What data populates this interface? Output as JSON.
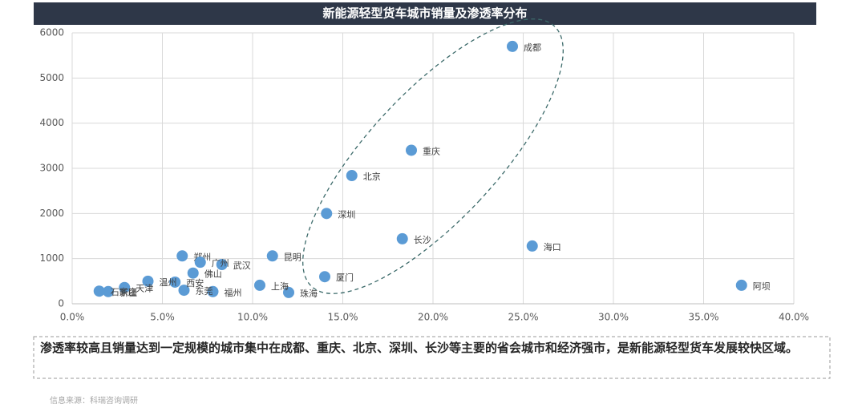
{
  "chart_data": {
    "type": "scatter",
    "title": "新能源轻型货车城市销量及渗透率分布",
    "note": "渗透率较高且销量达到一定规模的城市集中在成都、重庆、北京、深圳、长沙等主要的省会城市和经济强市，是新能源轻型货车发展较快区域。",
    "source": "信息来源：科瑞咨询调研",
    "color": "#5b9bd5",
    "labels": [
      "成都",
      "重庆",
      "北京",
      "深圳",
      "长沙",
      "海口",
      "阿坝",
      "厦门",
      "珠海",
      "上海",
      "昆明",
      "武汉",
      "福州",
      "郑州",
      "广州",
      "佛山",
      "东莞",
      "西安",
      "温州",
      "天津",
      "新疆",
      "石家庄"
    ],
    "x": [
      24.4,
      18.8,
      15.5,
      14.1,
      18.3,
      25.5,
      37.1,
      14.0,
      12.0,
      10.4,
      11.1,
      8.3,
      7.8,
      6.1,
      7.1,
      6.7,
      6.2,
      5.7,
      4.2,
      2.9,
      2.0,
      1.5
    ],
    "values": [
      5700,
      3400,
      2840,
      2000,
      1440,
      1280,
      410,
      600,
      250,
      410,
      1060,
      870,
      270,
      1060,
      920,
      680,
      300,
      480,
      500,
      360,
      270,
      280
    ],
    "xlim": [
      0,
      40
    ],
    "xticks": [
      {
        "value": 0,
        "label": "0.0%"
      },
      {
        "value": 5,
        "label": "5.0%"
      },
      {
        "value": 10,
        "label": "10.0%"
      },
      {
        "value": 15,
        "label": "15.0%"
      },
      {
        "value": 20,
        "label": "20.0%"
      },
      {
        "value": 25,
        "label": "25.0%"
      },
      {
        "value": 30,
        "label": "30.0%"
      },
      {
        "value": 35,
        "label": "35.0%"
      },
      {
        "value": 40,
        "label": "40.0%"
      }
    ],
    "ylim": [
      0,
      6000
    ],
    "yticks": [
      0,
      1000,
      2000,
      3000,
      4000,
      5000,
      6000
    ],
    "grid": true
  }
}
